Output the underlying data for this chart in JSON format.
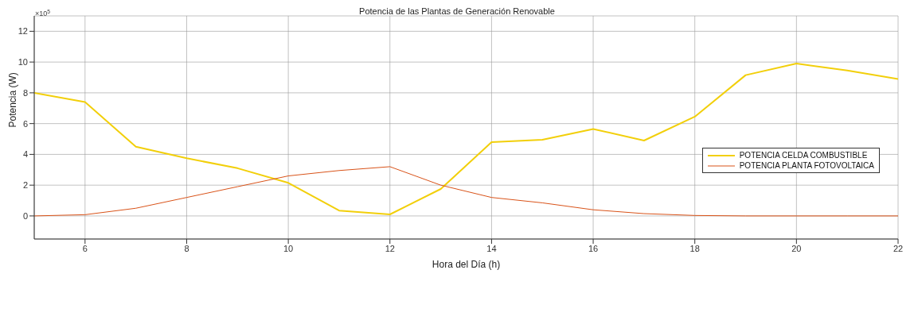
{
  "chart_data": {
    "type": "line",
    "title": "Potencia de las Plantas de Generación Renovable",
    "xlabel": "Hora del Día (h)",
    "ylabel": "Potencia (W)",
    "annotations": [
      "×10$^{5}$"
    ],
    "x": [
      5,
      6,
      7,
      8,
      9,
      10,
      11,
      12,
      13,
      14,
      15,
      16,
      17,
      18,
      19,
      20,
      21,
      22
    ],
    "series": [
      {
        "name": "POTENCIA CELDA COMBUSTIBLE",
        "color": "#f2cf0a",
        "values": [
          8.0,
          7.4,
          4.5,
          3.75,
          3.1,
          2.15,
          0.35,
          0.1,
          1.75,
          4.8,
          4.95,
          5.65,
          4.9,
          6.45,
          9.15,
          9.9,
          9.45,
          8.9
        ]
      },
      {
        "name": "POTENCIA PLANTA FOTOVOLTAICA",
        "color": "#d95319",
        "values": [
          0,
          0.08,
          0.5,
          1.2,
          1.9,
          2.6,
          2.95,
          3.2,
          2.0,
          1.2,
          0.85,
          0.4,
          0.15,
          0.03,
          0,
          0,
          0,
          0
        ]
      }
    ],
    "xlim": [
      5,
      22
    ],
    "xticks": [
      6,
      8,
      10,
      12,
      14,
      16,
      18,
      20,
      22
    ],
    "ylim": [
      -1.5,
      13
    ],
    "yticks": [
      0,
      2,
      4,
      6,
      8,
      10,
      12
    ],
    "grid": true,
    "legend": "right",
    "marker": "none",
    "line_style": "solid"
  }
}
